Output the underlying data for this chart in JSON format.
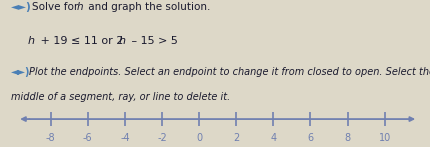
{
  "bg_color": "#ddd8c8",
  "text1_speaker": "◄►)",
  "text1_main": " Solve for ",
  "text1_h": "h",
  "text1_end": " and graph the solution.",
  "text2": "h + 19 ≤ 11 or 2h – 15 > 5",
  "text3_speaker": "◄►)",
  "text3_main": " Plot the endpoints. Select an endpoint to change it from closed to open. Select the",
  "text4": "middle of a segment, ray, or line to delete it.",
  "axis_color": "#7080b0",
  "tick_labels": [
    "-8",
    "-6",
    "-4",
    "-2",
    "0",
    "2",
    "4",
    "6",
    "8",
    "10"
  ],
  "tick_values": [
    -8,
    -6,
    -4,
    -2,
    0,
    2,
    4,
    6,
    8,
    10
  ],
  "xlim": [
    -9.8,
    11.8
  ],
  "font_color": "#1a1a2e",
  "font_size_title": 7.5,
  "font_size_eq": 8.0,
  "font_size_inst": 7.0,
  "font_size_tick": 7.0
}
